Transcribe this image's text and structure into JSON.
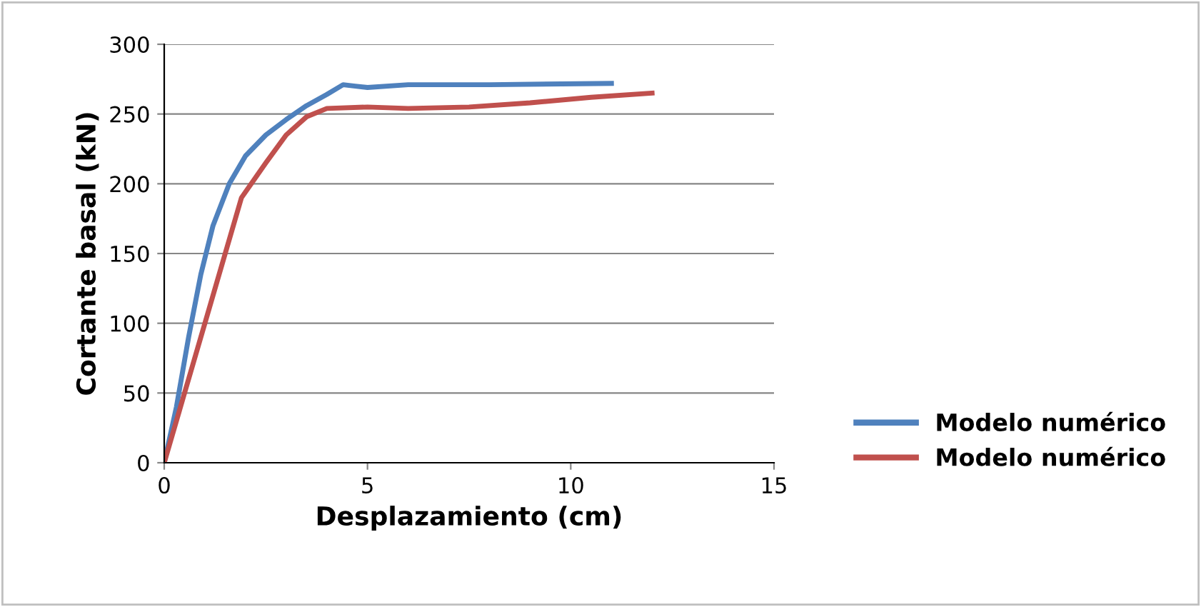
{
  "chart_data": {
    "type": "line",
    "xlabel": "Desplazamiento (cm)",
    "ylabel": "Cortante basal (kN)",
    "xlim": [
      0,
      15
    ],
    "xticks": [
      0,
      5,
      10,
      15
    ],
    "ylim": [
      0,
      300
    ],
    "yticks": [
      0,
      50,
      100,
      150,
      200,
      250,
      300
    ],
    "grid": "y",
    "legend": "right",
    "marker": "none",
    "line_style": "solid",
    "series": [
      {
        "name": "Modelo numérico",
        "color": "#4f81bd",
        "x": [
          0,
          0.3,
          0.6,
          0.9,
          1.2,
          1.6,
          2.0,
          2.5,
          3.0,
          3.5,
          4.0,
          4.4,
          4.7,
          5.0,
          6,
          8,
          11
        ],
        "values": [
          0,
          40,
          90,
          135,
          170,
          200,
          220,
          235,
          246,
          256,
          264,
          271,
          270,
          269,
          271,
          271,
          272
        ]
      },
      {
        "name": "Modelo numérico",
        "color": "#c0504d",
        "x": [
          0,
          0.5,
          1,
          1.5,
          1.9,
          2.5,
          3.0,
          3.5,
          4,
          5,
          6,
          7.5,
          9,
          10.5,
          12
        ],
        "values": [
          0,
          50,
          100,
          150,
          190,
          215,
          235,
          248,
          254,
          255,
          254,
          255,
          258,
          262,
          265
        ]
      }
    ]
  }
}
